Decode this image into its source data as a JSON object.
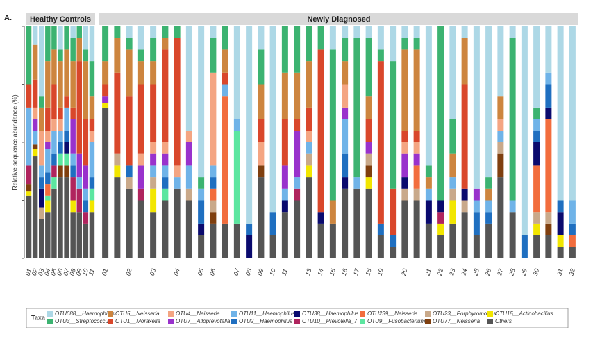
{
  "chart_data": [
    {
      "type": "bar",
      "stacked": true,
      "label": "A.",
      "title": "Healthy Controls",
      "y_label": "Relative sequence abundance (%)",
      "legend_title": "Taxa",
      "ylim": [
        0,
        100
      ],
      "yticks": [
        0,
        25,
        50,
        75,
        100
      ],
      "categories": [
        "01",
        "02",
        "03",
        "04",
        "05",
        "06",
        "07",
        "08",
        "09",
        "10",
        "11"
      ],
      "series": [
        {
          "name": "OTU688__Haemophilus",
          "color": "#add8e6",
          "values": [
            0,
            8,
            30,
            0,
            0,
            10,
            0,
            5,
            0,
            10,
            15
          ]
        },
        {
          "name": "OTU3__Streptococcus",
          "color": "#3cb371",
          "values": [
            25,
            0,
            5,
            15,
            10,
            5,
            10,
            10,
            5,
            5,
            15
          ]
        },
        {
          "name": "OTU5__Neisseria",
          "color": "#cd853f",
          "values": [
            0,
            15,
            10,
            20,
            15,
            20,
            20,
            20,
            10,
            25,
            10
          ]
        },
        {
          "name": "OTU1__Moraxella",
          "color": "#d9472b",
          "values": [
            10,
            12,
            0,
            10,
            15,
            5,
            5,
            5,
            40,
            20,
            5
          ]
        },
        {
          "name": "OTU4__Neisseria",
          "color": "#f4a582",
          "values": [
            0,
            5,
            15,
            5,
            5,
            5,
            0,
            0,
            0,
            0,
            5
          ]
        },
        {
          "name": "OTU7__Alloprevotella",
          "color": "#9932cc",
          "values": [
            0,
            5,
            0,
            3,
            0,
            0,
            0,
            15,
            10,
            10,
            0
          ]
        },
        {
          "name": "OTU11__Haemophilus",
          "color": "#6fb3e8",
          "values": [
            25,
            6,
            5,
            10,
            10,
            5,
            10,
            5,
            5,
            5,
            15
          ]
        },
        {
          "name": "OTU2__Haemophilus",
          "color": "#1f6fc0",
          "values": [
            0,
            0,
            5,
            5,
            5,
            5,
            5,
            5,
            0,
            5,
            5
          ]
        },
        {
          "name": "OTU38__Haemophilus",
          "color": "#0a0a6e",
          "values": [
            0,
            0,
            8,
            0,
            0,
            0,
            5,
            0,
            0,
            0,
            0
          ]
        },
        {
          "name": "OTU10__Prevotella_7",
          "color": "#b0245e",
          "values": [
            8,
            0,
            0,
            0,
            5,
            0,
            0,
            10,
            10,
            5,
            0
          ]
        },
        {
          "name": "OTU239__Neisseria",
          "color": "#f26d3d",
          "values": [
            0,
            0,
            0,
            5,
            0,
            0,
            0,
            0,
            0,
            0,
            0
          ]
        },
        {
          "name": "OTU9__Fusobacterium",
          "color": "#5ce6a0",
          "values": [
            0,
            0,
            0,
            2,
            5,
            5,
            5,
            0,
            0,
            0,
            5
          ]
        },
        {
          "name": "OTU23__Porphyromonas",
          "color": "#c9a98a",
          "values": [
            0,
            0,
            5,
            0,
            0,
            0,
            0,
            0,
            0,
            0,
            0
          ]
        },
        {
          "name": "OTU77__Neisseria",
          "color": "#7f3f0f",
          "values": [
            3,
            2,
            0,
            0,
            0,
            5,
            5,
            0,
            0,
            0,
            0
          ]
        },
        {
          "name": "OTU15__Actinobacillus",
          "color": "#f2e600",
          "values": [
            2,
            3,
            0,
            5,
            0,
            0,
            0,
            5,
            0,
            0,
            5
          ]
        },
        {
          "name": "Others",
          "color": "#555555",
          "values": [
            27,
            44,
            17,
            20,
            30,
            35,
            35,
            20,
            20,
            15,
            20
          ]
        }
      ]
    },
    {
      "type": "bar",
      "stacked": true,
      "title": "Newly Diagnosed",
      "categories": [
        "01",
        null,
        "02",
        null,
        "03",
        null,
        "04",
        null,
        "05",
        "06",
        null,
        "07",
        "08",
        "09",
        "10",
        "11",
        null,
        "13",
        "14",
        "15",
        "16",
        "17",
        "18",
        "19",
        null,
        "20",
        null,
        "21",
        "22",
        "23",
        "24",
        "25",
        "26",
        "27",
        "28",
        "29",
        "30",
        null,
        "31",
        "32"
      ],
      "series": [
        {
          "name": "OTU688__Haemophilus",
          "color": "#add8e6",
          "values": [
            0,
            0,
            5,
            10,
            5,
            0,
            0,
            45,
            65,
            5,
            0,
            40,
            85,
            10,
            80,
            0,
            0,
            0,
            0,
            10,
            5,
            5,
            5,
            10,
            15,
            5,
            5,
            60,
            0,
            40,
            5,
            70,
            65,
            30,
            5,
            90,
            35,
            20,
            75,
            75
          ]
        },
        {
          "name": "OTU3__Streptococcus",
          "color": "#3cb371",
          "values": [
            15,
            5,
            5,
            5,
            10,
            5,
            5,
            0,
            5,
            15,
            10,
            0,
            0,
            15,
            0,
            20,
            20,
            15,
            10,
            65,
            10,
            60,
            25,
            5,
            55,
            5,
            5,
            5,
            75,
            15,
            0,
            0,
            5,
            0,
            70,
            0,
            5,
            0,
            0,
            0
          ]
        },
        {
          "name": "OTU5__Neisseria",
          "color": "#cd853f",
          "values": [
            10,
            15,
            20,
            10,
            10,
            5,
            0,
            0,
            0,
            0,
            10,
            0,
            0,
            15,
            0,
            20,
            20,
            20,
            0,
            10,
            10,
            0,
            10,
            0,
            0,
            35,
            35,
            5,
            0,
            10,
            20,
            0,
            5,
            10,
            0,
            0,
            0,
            0,
            0,
            0
          ]
        },
        {
          "name": "OTU1__Moraxella",
          "color": "#d9472b",
          "values": [
            5,
            35,
            30,
            30,
            25,
            40,
            55,
            0,
            0,
            0,
            5,
            0,
            0,
            10,
            0,
            20,
            5,
            10,
            70,
            0,
            0,
            0,
            10,
            70,
            20,
            5,
            5,
            0,
            0,
            0,
            45,
            0,
            0,
            0,
            0,
            0,
            0,
            0,
            0,
            0
          ]
        },
        {
          "name": "OTU4__Neisseria",
          "color": "#f4a582",
          "values": [
            0,
            0,
            0,
            5,
            5,
            5,
            5,
            5,
            0,
            40,
            0,
            0,
            0,
            10,
            0,
            0,
            0,
            5,
            0,
            0,
            10,
            0,
            0,
            0,
            0,
            5,
            5,
            0,
            0,
            0,
            0,
            0,
            0,
            5,
            0,
            0,
            0,
            0,
            0,
            0
          ]
        },
        {
          "name": "OTU7__Alloprevotella",
          "color": "#9932cc",
          "values": [
            3,
            0,
            0,
            10,
            5,
            5,
            0,
            10,
            0,
            0,
            0,
            0,
            0,
            0,
            0,
            10,
            20,
            0,
            0,
            0,
            5,
            0,
            5,
            0,
            0,
            10,
            5,
            0,
            0,
            0,
            0,
            5,
            0,
            0,
            0,
            0,
            0,
            0,
            0,
            0
          ]
        },
        {
          "name": "OTU11__Haemophilus",
          "color": "#6fb3e8",
          "values": [
            0,
            0,
            0,
            0,
            5,
            5,
            5,
            10,
            5,
            5,
            5,
            5,
            0,
            0,
            0,
            5,
            5,
            5,
            0,
            0,
            15,
            5,
            0,
            0,
            0,
            0,
            0,
            5,
            0,
            5,
            0,
            5,
            5,
            5,
            5,
            0,
            5,
            5,
            0,
            10
          ]
        },
        {
          "name": "OTU2__Haemophilus",
          "color": "#1f6fc0",
          "values": [
            0,
            0,
            5,
            0,
            0,
            5,
            0,
            0,
            10,
            5,
            0,
            0,
            5,
            0,
            10,
            0,
            0,
            0,
            0,
            0,
            10,
            0,
            0,
            5,
            5,
            0,
            0,
            0,
            0,
            0,
            0,
            10,
            5,
            0,
            0,
            10,
            5,
            10,
            5,
            5
          ]
        },
        {
          "name": "OTU38__Haemophilus",
          "color": "#0a0a6e",
          "values": [
            0,
            0,
            0,
            0,
            0,
            0,
            0,
            0,
            5,
            0,
            0,
            0,
            10,
            0,
            0,
            5,
            0,
            0,
            5,
            0,
            5,
            0,
            0,
            0,
            0,
            5,
            0,
            10,
            5,
            0,
            5,
            0,
            0,
            0,
            0,
            0,
            10,
            5,
            10,
            0
          ]
        },
        {
          "name": "OTU10__Prevotella_7",
          "color": "#b0245e",
          "values": [
            0,
            0,
            0,
            5,
            0,
            0,
            0,
            0,
            0,
            0,
            0,
            0,
            0,
            0,
            0,
            0,
            5,
            0,
            0,
            0,
            0,
            0,
            0,
            0,
            0,
            0,
            0,
            0,
            5,
            0,
            0,
            0,
            0,
            0,
            0,
            0,
            0,
            0,
            0,
            0
          ]
        },
        {
          "name": "OTU239__Neisseria",
          "color": "#f26d3d",
          "values": [
            0,
            0,
            0,
            0,
            0,
            0,
            0,
            0,
            0,
            5,
            55,
            0,
            0,
            0,
            0,
            0,
            0,
            0,
            0,
            0,
            0,
            0,
            0,
            0,
            0,
            0,
            10,
            0,
            0,
            0,
            0,
            0,
            0,
            0,
            0,
            0,
            20,
            40,
            0,
            5
          ]
        },
        {
          "name": "OTU9__Fusobacterium",
          "color": "#5ce6a0",
          "values": [
            0,
            0,
            0,
            0,
            0,
            5,
            0,
            0,
            0,
            0,
            0,
            40,
            0,
            0,
            0,
            0,
            0,
            0,
            0,
            0,
            0,
            0,
            0,
            0,
            0,
            0,
            0,
            0,
            0,
            0,
            0,
            0,
            0,
            0,
            0,
            0,
            0,
            0,
            0,
            0
          ]
        },
        {
          "name": "OTU23__Porphyromonas",
          "color": "#c9a98a",
          "values": [
            0,
            5,
            5,
            0,
            5,
            0,
            0,
            5,
            0,
            5,
            0,
            0,
            0,
            0,
            0,
            0,
            0,
            5,
            0,
            0,
            0,
            0,
            5,
            0,
            0,
            5,
            5,
            0,
            0,
            5,
            5,
            0,
            0,
            5,
            0,
            0,
            5,
            5,
            0,
            0
          ]
        },
        {
          "name": "OTU77__Neisseria",
          "color": "#7f3f0f",
          "values": [
            0,
            0,
            0,
            0,
            0,
            0,
            0,
            0,
            0,
            5,
            0,
            0,
            0,
            5,
            0,
            0,
            0,
            0,
            0,
            0,
            0,
            0,
            5,
            0,
            0,
            0,
            0,
            0,
            0,
            0,
            0,
            0,
            0,
            10,
            0,
            0,
            0,
            5,
            0,
            0
          ]
        },
        {
          "name": "OTU15__Actinobacillus",
          "color": "#f2e600",
          "values": [
            2,
            5,
            0,
            0,
            10,
            0,
            0,
            0,
            0,
            0,
            0,
            0,
            0,
            0,
            0,
            0,
            0,
            5,
            0,
            0,
            0,
            0,
            5,
            0,
            0,
            0,
            0,
            0,
            5,
            10,
            0,
            0,
            0,
            0,
            0,
            0,
            5,
            0,
            5,
            0
          ]
        },
        {
          "name": "Others",
          "color": "#555555",
          "values": [
            65,
            35,
            30,
            25,
            20,
            25,
            30,
            25,
            10,
            15,
            15,
            15,
            0,
            35,
            10,
            20,
            25,
            35,
            15,
            15,
            30,
            30,
            30,
            10,
            5,
            25,
            25,
            15,
            10,
            15,
            20,
            10,
            15,
            35,
            20,
            0,
            10,
            10,
            5,
            5
          ]
        }
      ]
    }
  ]
}
